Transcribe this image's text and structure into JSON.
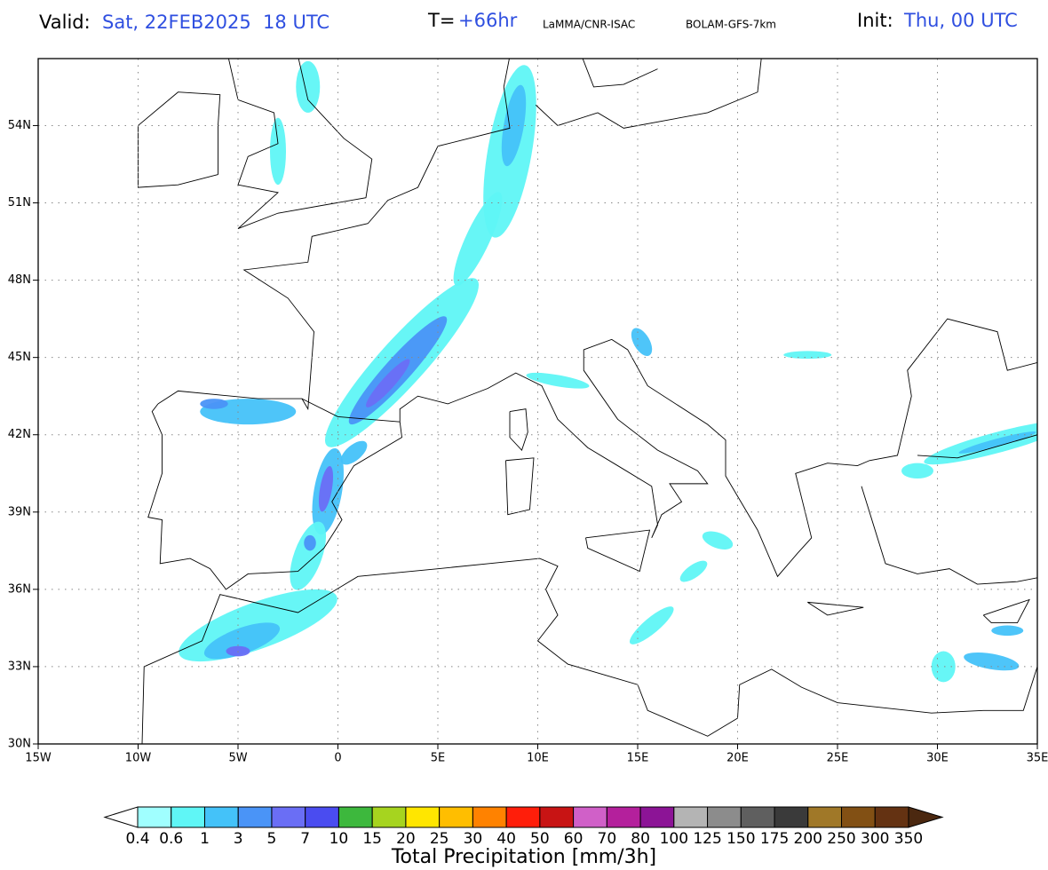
{
  "header": {
    "valid_label": "Valid:",
    "valid_time": "Sat, 22FEB2025  18 UTC",
    "lead_label": "T=",
    "lead_time": "+66hr",
    "source": "LaMMA/CNR-ISAC",
    "model": "BOLAM-GFS-7km",
    "init_label": "Init:",
    "init_time": "Thu, 00 UTC"
  },
  "map": {
    "xlim": [
      -15,
      35
    ],
    "ylim": [
      30,
      56.6
    ],
    "grid": true,
    "xticks": [
      {
        "value": -15,
        "label": "15W"
      },
      {
        "value": -10,
        "label": "10W"
      },
      {
        "value": -5,
        "label": "5W"
      },
      0,
      {
        "value": 5,
        "label": "5E"
      },
      {
        "value": 10,
        "label": "10E"
      },
      {
        "value": 15,
        "label": "15E"
      },
      {
        "value": 20,
        "label": "20E"
      },
      {
        "value": 25,
        "label": "25E"
      },
      {
        "value": 30,
        "label": "30E"
      },
      {
        "value": 35,
        "label": "35E"
      }
    ],
    "yticks": [
      {
        "value": 30,
        "label": "30N"
      },
      {
        "value": 33,
        "label": "33N"
      },
      {
        "value": 36,
        "label": "36N"
      },
      {
        "value": 39,
        "label": "39N"
      },
      {
        "value": 42,
        "label": "42N"
      },
      {
        "value": 45,
        "label": "45N"
      },
      {
        "value": 48,
        "label": "48N"
      },
      {
        "value": 51,
        "label": "51N"
      },
      {
        "value": 54,
        "label": "54N"
      }
    ]
  },
  "colorbar": {
    "title": "Total Precipitation [mm/3h]",
    "levels": [
      0.4,
      0.6,
      1,
      3,
      5,
      7,
      10,
      15,
      20,
      25,
      30,
      40,
      50,
      60,
      70,
      80,
      100,
      125,
      150,
      175,
      200,
      250,
      300,
      350
    ],
    "colors": [
      "#a0ffff",
      "#5ff6f6",
      "#44c2f9",
      "#4a94f7",
      "#6a6ef5",
      "#4a4cf0",
      "#3db83d",
      "#a6d41f",
      "#ffe600",
      "#ffbe00",
      "#ff8200",
      "#ff1e0a",
      "#c81414",
      "#d060c8",
      "#b4209c",
      "#8c1496",
      "#b4b4b4",
      "#8c8c8c",
      "#5f5f5f",
      "#3a3a3a",
      "#a07828",
      "#825014",
      "#643212"
    ],
    "under_color": "#ffffff",
    "over_color": "#4b2810"
  }
}
